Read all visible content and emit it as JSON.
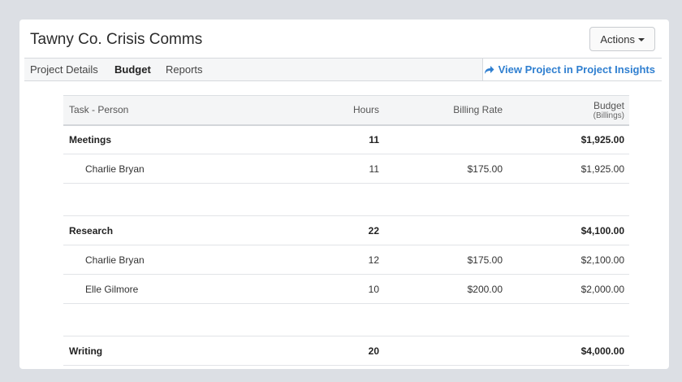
{
  "header": {
    "title": "Tawny Co. Crisis Comms",
    "actions_label": "Actions"
  },
  "tabs": [
    {
      "label": "Project Details",
      "active": false
    },
    {
      "label": "Budget",
      "active": true
    },
    {
      "label": "Reports",
      "active": false
    }
  ],
  "insights_link": {
    "label": "View Project in Project Insights",
    "icon": "share-arrow-icon"
  },
  "table": {
    "headers": {
      "task_person": "Task - Person",
      "hours": "Hours",
      "billing_rate": "Billing Rate",
      "budget": "Budget",
      "budget_sub": "(Billings)"
    },
    "rows": [
      {
        "type": "task",
        "name": "Meetings",
        "hours": "11",
        "rate": "",
        "budget": "$1,925.00"
      },
      {
        "type": "person",
        "name": "Charlie Bryan",
        "hours": "11",
        "rate": "$175.00",
        "budget": "$1,925.00"
      },
      {
        "type": "spacer"
      },
      {
        "type": "task",
        "name": "Research",
        "hours": "22",
        "rate": "",
        "budget": "$4,100.00"
      },
      {
        "type": "person",
        "name": "Charlie Bryan",
        "hours": "12",
        "rate": "$175.00",
        "budget": "$2,100.00"
      },
      {
        "type": "person",
        "name": "Elle Gilmore",
        "hours": "10",
        "rate": "$200.00",
        "budget": "$2,000.00"
      },
      {
        "type": "spacer"
      },
      {
        "type": "task",
        "name": "Writing",
        "hours": "20",
        "rate": "",
        "budget": "$4,000.00"
      }
    ]
  },
  "colors": {
    "link": "#2f7fd0",
    "background": "#dcdfe4"
  }
}
